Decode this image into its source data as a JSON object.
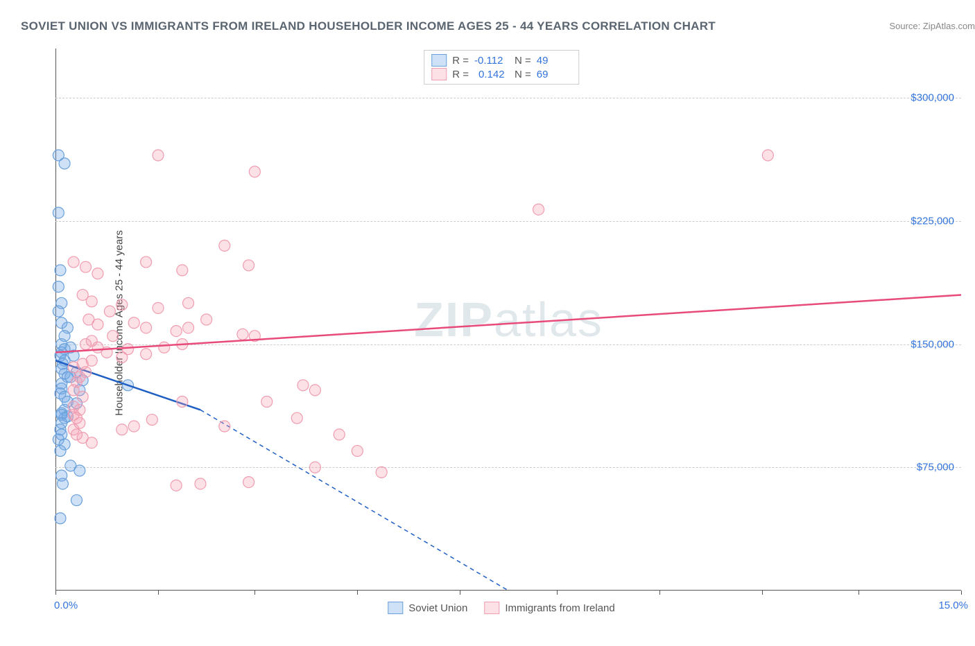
{
  "chart": {
    "title": "SOVIET UNION VS IMMIGRANTS FROM IRELAND HOUSEHOLDER INCOME AGES 25 - 44 YEARS CORRELATION CHART",
    "source": "Source: ZipAtlas.com",
    "y_axis_label": "Householder Income Ages 25 - 44 years",
    "watermark_bold": "ZIP",
    "watermark_light": "atlas",
    "plot": {
      "x_min": 0.0,
      "x_max": 15.0,
      "y_min": 0,
      "y_max": 330000,
      "y_ticks": [
        75000,
        150000,
        225000,
        300000
      ],
      "y_tick_labels": [
        "$75,000",
        "$150,000",
        "$225,000",
        "$300,000"
      ],
      "x_tick_start_label": "0.0%",
      "x_tick_end_label": "15.0%",
      "x_tick_marks_pct": [
        0,
        1.7,
        3.3,
        5.0,
        6.7,
        8.3,
        10.0,
        11.7,
        13.3,
        15.0
      ],
      "grid_color": "#cccccc",
      "background_color": "#ffffff"
    },
    "series": [
      {
        "name": "Soviet Union",
        "marker_fill": "rgba(115, 170, 230, 0.35)",
        "marker_stroke": "#6aa0db",
        "line_color": "#1f5fc4",
        "R": "-0.112",
        "N": "49",
        "trend": {
          "x1": 0.0,
          "y1": 140000,
          "x2": 2.4,
          "y2": 110000,
          "dash_x2": 7.5,
          "dash_y2": 0
        },
        "points": [
          [
            0.05,
            265000
          ],
          [
            0.15,
            260000
          ],
          [
            0.05,
            230000
          ],
          [
            0.08,
            195000
          ],
          [
            0.05,
            185000
          ],
          [
            0.1,
            175000
          ],
          [
            0.05,
            170000
          ],
          [
            0.1,
            163000
          ],
          [
            0.2,
            160000
          ],
          [
            0.15,
            155000
          ],
          [
            0.1,
            150000
          ],
          [
            0.25,
            148000
          ],
          [
            0.15,
            147000
          ],
          [
            0.1,
            145000
          ],
          [
            0.08,
            143000
          ],
          [
            0.3,
            143000
          ],
          [
            0.15,
            140000
          ],
          [
            0.12,
            138000
          ],
          [
            0.1,
            135000
          ],
          [
            0.35,
            133000
          ],
          [
            0.15,
            132000
          ],
          [
            0.2,
            130000
          ],
          [
            0.25,
            130000
          ],
          [
            0.45,
            128000
          ],
          [
            0.1,
            126000
          ],
          [
            0.1,
            123000
          ],
          [
            0.4,
            122000
          ],
          [
            0.08,
            120000
          ],
          [
            0.15,
            118000
          ],
          [
            0.2,
            115000
          ],
          [
            0.35,
            114000
          ],
          [
            0.15,
            110000
          ],
          [
            0.1,
            108000
          ],
          [
            0.1,
            107000
          ],
          [
            0.2,
            106000
          ],
          [
            0.15,
            105000
          ],
          [
            0.1,
            102000
          ],
          [
            0.08,
            98000
          ],
          [
            0.1,
            95000
          ],
          [
            0.05,
            92000
          ],
          [
            0.15,
            89000
          ],
          [
            0.08,
            85000
          ],
          [
            0.25,
            76000
          ],
          [
            0.4,
            73000
          ],
          [
            0.1,
            70000
          ],
          [
            0.12,
            65000
          ],
          [
            0.35,
            55000
          ],
          [
            0.08,
            44000
          ],
          [
            1.2,
            125000
          ]
        ]
      },
      {
        "name": "Immigrants from Ireland",
        "marker_fill": "rgba(245, 155, 175, 0.3)",
        "marker_stroke": "#f09db0",
        "line_color": "#e84a7a",
        "R": "0.142",
        "N": "69",
        "trend": {
          "x1": 0.0,
          "y1": 145000,
          "x2": 15.0,
          "y2": 180000,
          "dash_x2": null,
          "dash_y2": null
        },
        "points": [
          [
            1.7,
            265000
          ],
          [
            3.3,
            255000
          ],
          [
            11.8,
            265000
          ],
          [
            8.0,
            232000
          ],
          [
            2.8,
            210000
          ],
          [
            0.3,
            200000
          ],
          [
            1.5,
            200000
          ],
          [
            3.2,
            198000
          ],
          [
            0.5,
            197000
          ],
          [
            2.1,
            195000
          ],
          [
            0.7,
            193000
          ],
          [
            0.45,
            180000
          ],
          [
            0.6,
            176000
          ],
          [
            2.2,
            175000
          ],
          [
            1.1,
            174000
          ],
          [
            1.7,
            172000
          ],
          [
            0.9,
            170000
          ],
          [
            0.55,
            165000
          ],
          [
            2.5,
            165000
          ],
          [
            1.3,
            163000
          ],
          [
            0.7,
            162000
          ],
          [
            1.5,
            160000
          ],
          [
            2.2,
            160000
          ],
          [
            2.0,
            158000
          ],
          [
            0.95,
            155000
          ],
          [
            0.6,
            152000
          ],
          [
            0.5,
            150000
          ],
          [
            3.1,
            156000
          ],
          [
            3.3,
            155000
          ],
          [
            0.7,
            148000
          ],
          [
            1.2,
            147000
          ],
          [
            0.85,
            145000
          ],
          [
            1.5,
            144000
          ],
          [
            1.1,
            142000
          ],
          [
            2.1,
            150000
          ],
          [
            0.6,
            140000
          ],
          [
            0.45,
            138000
          ],
          [
            0.3,
            136000
          ],
          [
            0.5,
            133000
          ],
          [
            0.4,
            130000
          ],
          [
            0.35,
            127000
          ],
          [
            1.8,
            148000
          ],
          [
            0.3,
            122000
          ],
          [
            0.45,
            118000
          ],
          [
            4.3,
            122000
          ],
          [
            4.1,
            125000
          ],
          [
            0.3,
            112000
          ],
          [
            0.4,
            110000
          ],
          [
            2.1,
            115000
          ],
          [
            0.3,
            107000
          ],
          [
            0.35,
            105000
          ],
          [
            2.8,
            100000
          ],
          [
            3.5,
            115000
          ],
          [
            0.3,
            98000
          ],
          [
            1.1,
            98000
          ],
          [
            4.0,
            105000
          ],
          [
            4.7,
            95000
          ],
          [
            4.3,
            75000
          ],
          [
            3.2,
            66000
          ],
          [
            2.4,
            65000
          ],
          [
            2.0,
            64000
          ],
          [
            0.6,
            90000
          ],
          [
            5.0,
            85000
          ],
          [
            5.4,
            72000
          ],
          [
            0.35,
            95000
          ],
          [
            0.45,
            93000
          ],
          [
            0.4,
            102000
          ],
          [
            1.3,
            100000
          ],
          [
            1.6,
            104000
          ]
        ]
      }
    ]
  },
  "colors": {
    "title": "#5a6570",
    "source": "#888888",
    "axis_text": "#3273dc",
    "y_label": "#444444"
  }
}
